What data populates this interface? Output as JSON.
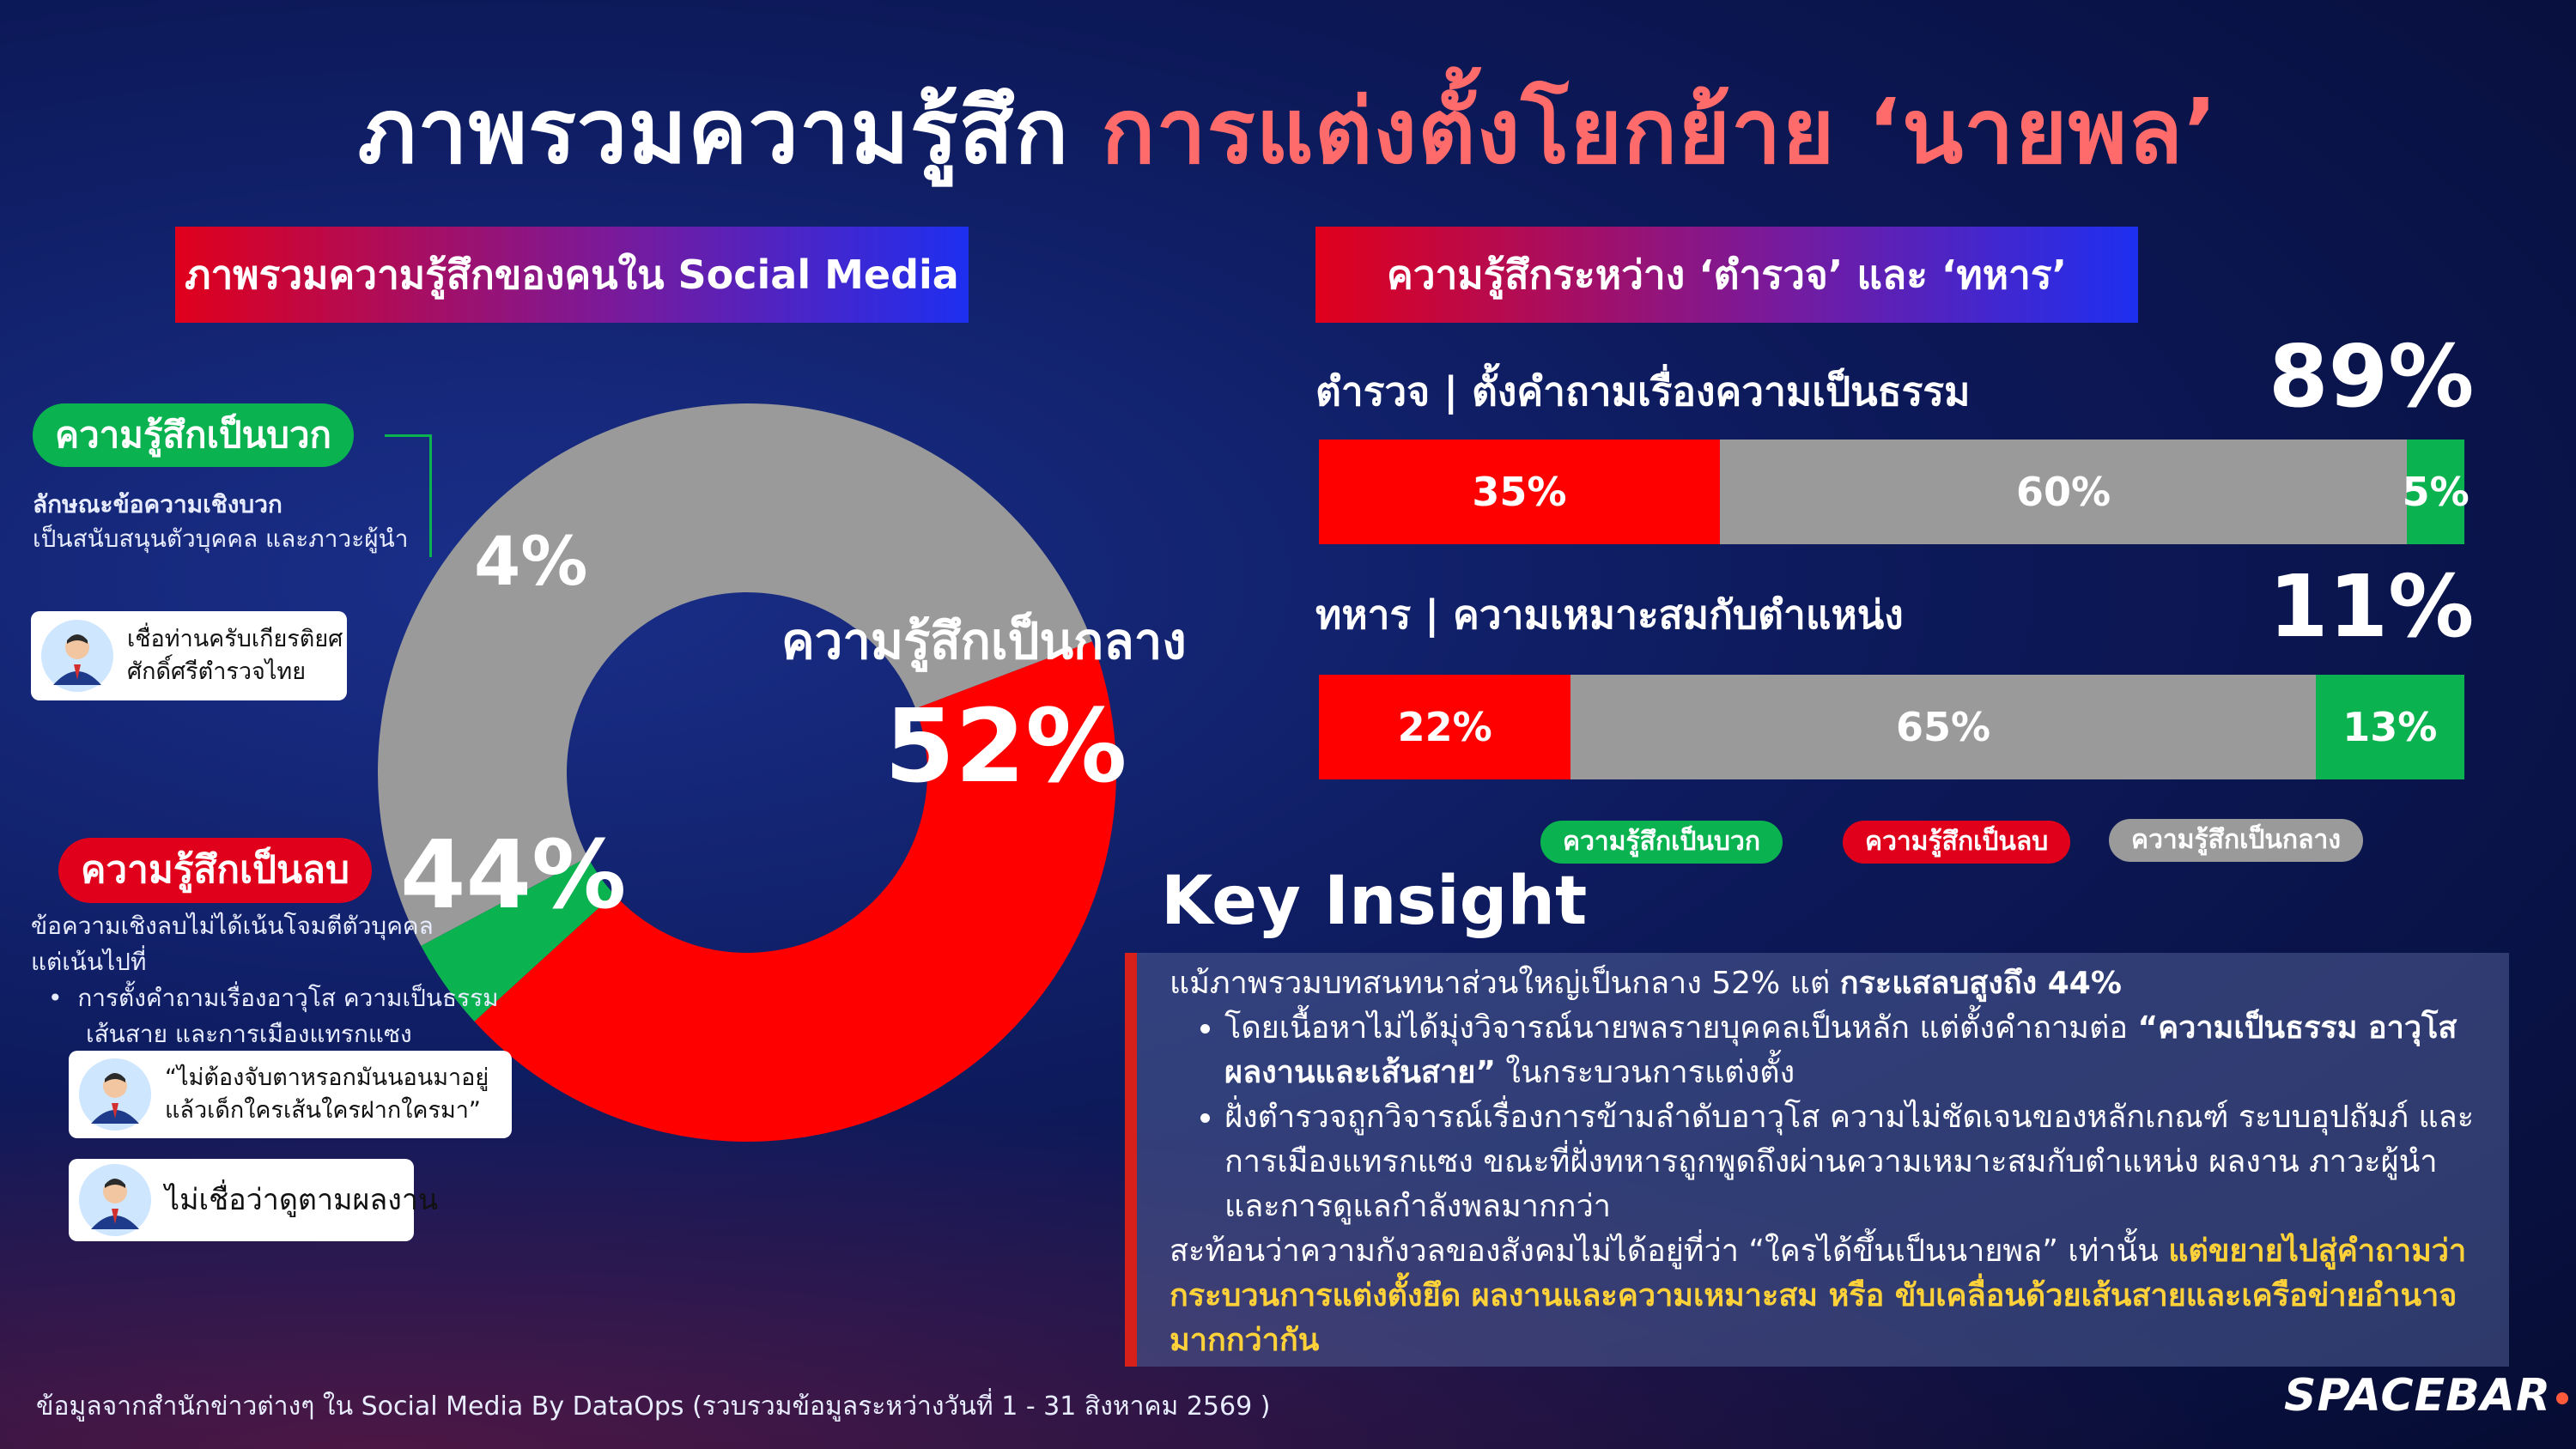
{
  "title": {
    "part1": "ภาพรวมความรู้สึก",
    "part2": "การแต่งตั้งโยกย้าย ‘นายพล’"
  },
  "left_banner": "ภาพรวมความรู้สึกของคนใน Social Media",
  "right_banner": "ความรู้สึกระหว่าง ‘ตำรวจ’ และ ‘ทหาร’",
  "positive": {
    "label": "ความรู้สึกเป็นบวก",
    "desc_title": "ลักษณะข้อความเชิงบวก",
    "desc_line": "เป็นสนับสนุนตัวบุคคล และภาวะผู้นำ",
    "quote_lines": [
      "เชื่อท่านครับเกียรติยศ",
      "ศักดิ์ศรีตำรวจไทย"
    ]
  },
  "negative": {
    "label": "ความรู้สึกเป็นลบ",
    "desc_lines": [
      "ข้อความเชิงลบไม่ได้เน้นโจมตีตัวบุคคล",
      "แต่เน้นไปที่"
    ],
    "bullet_lines": [
      "การตั้งคำถามเรื่องอาวุโส ความเป็นธรรม",
      "เส้นสาย และการเมืองแทรกแซง"
    ],
    "quote1_lines": [
      "“ไม่ต้องจับตาหรอกมันนอนมาอยู่",
      "แล้วเด็กใครเส้นใครฝากใครมา”"
    ],
    "quote2": "ไม่เชื่อว่าดูตามผลงาน"
  },
  "neutral": {
    "label": "ความรู้สึกเป็นกลาง"
  },
  "chart_data": [
    {
      "type": "pie",
      "title": "ภาพรวมความรู้สึกของคนใน Social Media",
      "slices": [
        {
          "name": "ความรู้สึกเป็นกลาง",
          "value": 52,
          "label": "52%",
          "color": "#9a9a9a"
        },
        {
          "name": "ความรู้สึกเป็นลบ",
          "value": 44,
          "label": "44%",
          "color": "#ff0000"
        },
        {
          "name": "ความรู้สึกเป็นบวก",
          "value": 4,
          "label": "4%",
          "color": "#0ab250"
        }
      ]
    },
    {
      "type": "bar",
      "title": "ความรู้สึกระหว่าง ‘ตำรวจ’ และ ‘ทหาร’",
      "stacked": true,
      "legend": [
        "ความรู้สึกเป็นบวก",
        "ความรู้สึกเป็นลบ",
        "ความรู้สึกเป็นกลาง"
      ],
      "rows": [
        {
          "label": "ตำรวจ | ตั้งคำถามเรื่องความเป็นธรรม",
          "share": "89%",
          "segments": [
            {
              "name": "ความรู้สึกเป็นลบ",
              "value": 35,
              "label": "35%",
              "color": "#ff0000"
            },
            {
              "name": "ความรู้สึกเป็นกลาง",
              "value": 60,
              "label": "60%",
              "color": "#9a9a9a"
            },
            {
              "name": "ความรู้สึกเป็นบวก",
              "value": 5,
              "label": "5%",
              "color": "#0ab250"
            }
          ]
        },
        {
          "label": "ทหาร | ความเหมาะสมกับตำแหน่ง",
          "share": "11%",
          "segments": [
            {
              "name": "ความรู้สึกเป็นลบ",
              "value": 22,
              "label": "22%",
              "color": "#ff0000"
            },
            {
              "name": "ความรู้สึกเป็นกลาง",
              "value": 65,
              "label": "65%",
              "color": "#9a9a9a"
            },
            {
              "name": "ความรู้สึกเป็นบวก",
              "value": 13,
              "label": "13%",
              "color": "#0ab250"
            }
          ]
        }
      ]
    }
  ],
  "legend": {
    "positive": "ความรู้สึกเป็นบวก",
    "negative": "ความรู้สึกเป็นลบ",
    "neutral": "ความรู้สึกเป็นกลาง"
  },
  "insight": {
    "title": "Key Insight",
    "p1_a": "แม้ภาพรวมบทสนทนาส่วนใหญ่เป็นกลาง 52% แต่ ",
    "p1_b": "กระแสลบสูงถึง 44%",
    "b1_a": "โดยเนื้อหาไม่ได้มุ่งวิจารณ์นายพลรายบุคคลเป็นหลัก แต่ตั้งคำถามต่อ ",
    "b1_b": "“ความเป็นธรรม อาวุโส ผลงานและเส้นสาย”",
    "b1_c": " ในกระบวนการแต่งตั้ง",
    "b2": "ฝั่งตำรวจถูกวิจารณ์เรื่องการข้ามลำดับอาวุโส ความไม่ชัดเจนของหลักเกณฑ์ ระบบอุปถัมภ์ และการเมืองแทรกแซง ขณะที่ฝั่งทหารถูกพูดถึงผ่านความเหมาะสมกับตำแหน่ง ผลงาน ภาวะผู้นำ และการดูแลกำลังพลมากกว่า",
    "p2_a": "สะท้อนว่าความกังวลของสังคมไม่ได้อยู่ที่ว่า “ใครได้ขึ้นเป็นนายพล” เท่านั้น ",
    "p2_b": "แต่ขยายไปสู่คำถามว่า กระบวนการแต่งตั้งยึด ผลงานและความเหมาะสม หรือ ขับเคลื่อนด้วยเส้นสายและเครือข่ายอำนาจมากกว่ากัน"
  },
  "footer": "ข้อมูลจากสำนักข่าวต่างๆ ใน Social Media By DataOps (รวบรวมข้อมูลระหว่างวันที่  1 - 31 สิงหาคม 2569 )",
  "logo": "SPACEBAR",
  "colors": {
    "positive": "#0ab250",
    "negative": "#ff0000",
    "neutral": "#9a9a9a"
  },
  "icons": {
    "avatar": "person-avatar-icon"
  }
}
